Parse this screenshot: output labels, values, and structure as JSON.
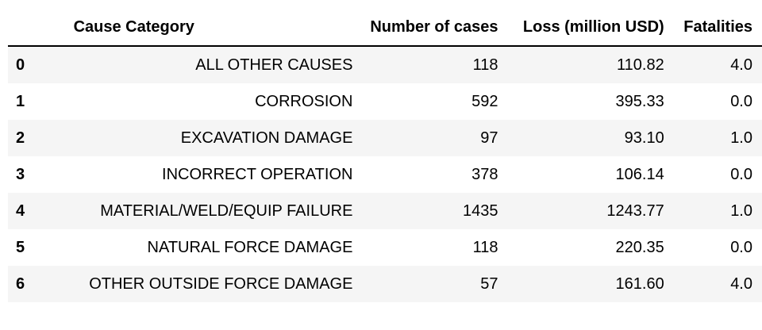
{
  "table": {
    "index_header": "",
    "columns": [
      "Cause Category",
      "Number of cases",
      "Loss (million USD)",
      "Fatalities"
    ],
    "rows": [
      {
        "index": "0",
        "cause": "ALL OTHER CAUSES",
        "cases": "118",
        "loss": "110.82",
        "fatalities": "4.0"
      },
      {
        "index": "1",
        "cause": "CORROSION",
        "cases": "592",
        "loss": "395.33",
        "fatalities": "0.0"
      },
      {
        "index": "2",
        "cause": "EXCAVATION DAMAGE",
        "cases": "97",
        "loss": "93.10",
        "fatalities": "1.0"
      },
      {
        "index": "3",
        "cause": "INCORRECT OPERATION",
        "cases": "378",
        "loss": "106.14",
        "fatalities": "0.0"
      },
      {
        "index": "4",
        "cause": "MATERIAL/WELD/EQUIP FAILURE",
        "cases": "1435",
        "loss": "1243.77",
        "fatalities": "1.0"
      },
      {
        "index": "5",
        "cause": "NATURAL FORCE DAMAGE",
        "cases": "118",
        "loss": "220.35",
        "fatalities": "0.0"
      },
      {
        "index": "6",
        "cause": "OTHER OUTSIDE FORCE DAMAGE",
        "cases": "57",
        "loss": "161.60",
        "fatalities": "4.0"
      }
    ]
  }
}
